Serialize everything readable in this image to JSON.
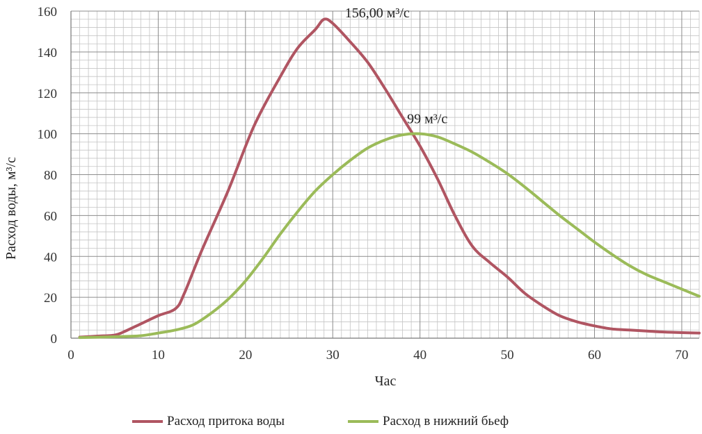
{
  "chart_data": {
    "type": "line",
    "title": "",
    "xlabel": "Час",
    "ylabel": "Расход воды, м³/с",
    "xlim": [
      0,
      72
    ],
    "ylim": [
      0,
      160
    ],
    "x_ticks": [
      0,
      10,
      20,
      30,
      40,
      50,
      60,
      70
    ],
    "y_ticks": [
      0,
      20,
      40,
      60,
      80,
      100,
      120,
      140,
      160
    ],
    "grid": true,
    "legend_position": "bottom",
    "series": [
      {
        "name": "Расход притока воды",
        "color": "#b05562",
        "x": [
          1,
          3,
          5,
          6,
          8,
          10,
          12,
          13,
          15,
          18,
          21,
          24,
          26,
          28,
          29,
          30,
          32,
          34,
          36,
          38,
          40,
          42,
          44,
          46,
          48,
          50,
          52,
          54,
          56,
          58,
          60,
          62,
          64,
          66,
          68,
          70,
          72
        ],
        "values": [
          0.5,
          1,
          1.5,
          3,
          7,
          11,
          14.5,
          22,
          43,
          72,
          104,
          128,
          142,
          151,
          156,
          154,
          145,
          135,
          122,
          108,
          94,
          78,
          60,
          45,
          37,
          30,
          22,
          16,
          11,
          8,
          6,
          4.5,
          4,
          3.5,
          3,
          2.7,
          2.5
        ]
      },
      {
        "name": "Расход в нижний бьеф",
        "color": "#9bbb59",
        "x": [
          1,
          5,
          8,
          10,
          12,
          14,
          16,
          18,
          20,
          22,
          24,
          26,
          28,
          30,
          32,
          34,
          36,
          38,
          40,
          42,
          44,
          46,
          48,
          50,
          52,
          54,
          56,
          58,
          60,
          62,
          64,
          66,
          68,
          70,
          72
        ],
        "values": [
          0.3,
          0.7,
          1.2,
          2.5,
          4,
          6.5,
          12,
          19,
          28,
          39,
          51,
          62,
          72,
          80,
          87,
          93,
          97,
          99.5,
          100,
          98.5,
          95,
          91,
          86,
          80.5,
          74,
          67,
          60,
          53.5,
          47,
          41,
          35.5,
          31,
          27.5,
          24,
          20.5
        ]
      }
    ],
    "annotations": [
      {
        "text": "156,00 м³/с",
        "x": 29,
        "y": 156
      },
      {
        "text": "99 м³/с",
        "x": 39,
        "y": 100
      }
    ]
  }
}
